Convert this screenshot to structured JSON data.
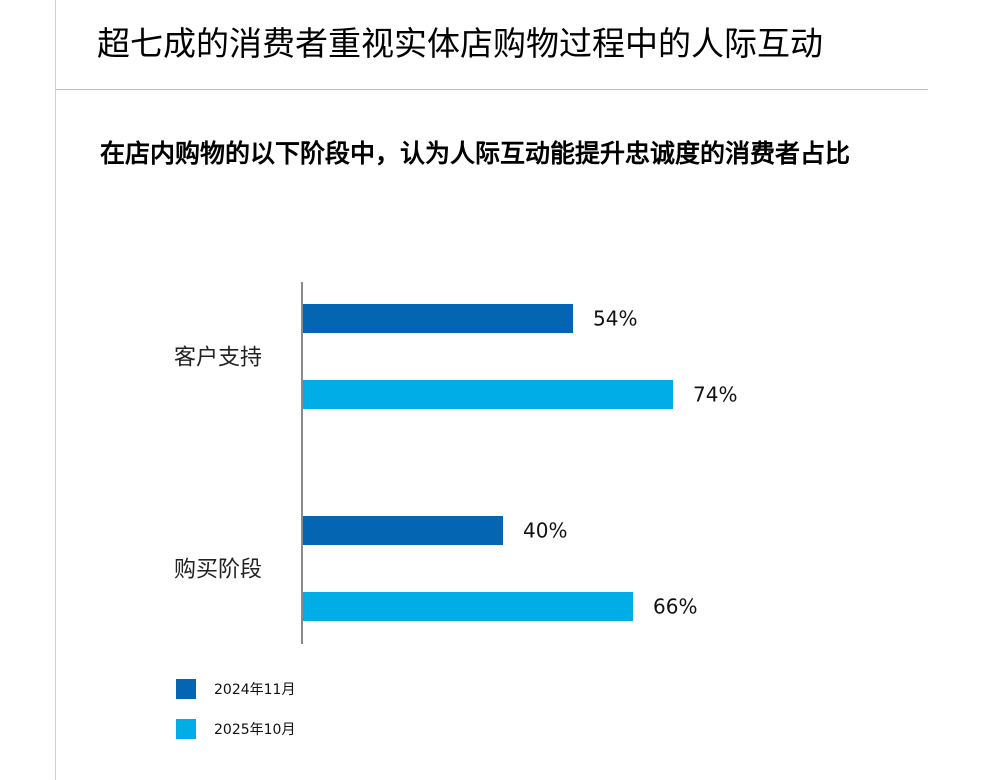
{
  "slide": {
    "title": "超七成的消费者重视实体店购物过程中的人际互动"
  },
  "chart_data": {
    "type": "bar",
    "orientation": "horizontal",
    "title": "在店内购物的以下阶段中，认为人际互动能提升忠诚度的消费者占比",
    "categories": [
      "客户支持",
      "购买阶段"
    ],
    "series": [
      {
        "name": "2024年11月",
        "values": [
          54,
          40
        ],
        "labels": [
          "54%",
          "40%"
        ],
        "color": "#0466b3"
      },
      {
        "name": "2025年10月",
        "values": [
          74,
          66
        ],
        "labels": [
          "74%",
          "66%"
        ],
        "color": "#00ade6"
      }
    ],
    "xlim": [
      0,
      100
    ],
    "grid": false,
    "legend": "bottom-left"
  }
}
